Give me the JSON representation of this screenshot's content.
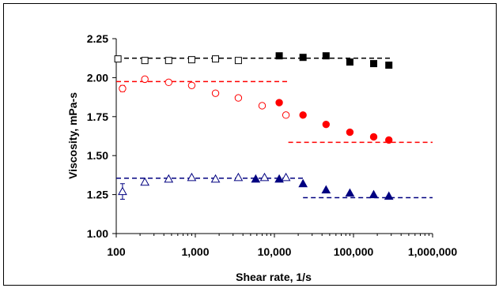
{
  "chart_data": {
    "type": "scatter",
    "title": "",
    "xlabel": "Shear rate, 1/s",
    "ylabel": "Viscosity, mPa-s",
    "xscale": "log",
    "xlim": [
      100,
      1000000
    ],
    "ylim": [
      1.0,
      2.25
    ],
    "x_tick_labels": [
      "100",
      "1,000",
      "10,000",
      "100,000",
      "1,000,000"
    ],
    "x_tick_values": [
      100,
      1000,
      10000,
      100000,
      1000000
    ],
    "y_tick_labels": [
      "1.00",
      "1.25",
      "1.50",
      "1.75",
      "2.00",
      "2.25"
    ],
    "y_tick_values": [
      1.0,
      1.25,
      1.5,
      1.75,
      2.0,
      2.25
    ],
    "grid": false,
    "legend": "none",
    "series": [
      {
        "marker": "square",
        "filled": false,
        "color": "#000000",
        "x": [
          105,
          230,
          460,
          900,
          1800,
          3500
        ],
        "y": [
          2.12,
          2.11,
          2.11,
          2.115,
          2.12,
          2.11
        ]
      },
      {
        "marker": "square",
        "filled": true,
        "color": "#000000",
        "x": [
          11500,
          23000,
          45000,
          90000,
          180000,
          280000
        ],
        "y": [
          2.14,
          2.13,
          2.14,
          2.1,
          2.09,
          2.08
        ]
      },
      {
        "marker": "circle",
        "filled": false,
        "color": "#ff0000",
        "x": [
          120,
          230,
          460,
          900,
          1800,
          3500,
          7000,
          14000
        ],
        "y": [
          1.93,
          1.99,
          1.97,
          1.95,
          1.9,
          1.87,
          1.82,
          1.76
        ]
      },
      {
        "marker": "circle",
        "filled": true,
        "color": "#ff0000",
        "x": [
          11500,
          23000,
          45000,
          90000,
          180000,
          280000
        ],
        "y": [
          1.84,
          1.76,
          1.7,
          1.65,
          1.62,
          1.6
        ]
      },
      {
        "marker": "triangle",
        "filled": false,
        "color": "#000080",
        "x": [
          120,
          230,
          460,
          900,
          1800,
          3500,
          7500,
          14000
        ],
        "y": [
          1.27,
          1.33,
          1.35,
          1.36,
          1.35,
          1.36,
          1.36,
          1.36
        ]
      },
      {
        "marker": "triangle",
        "filled": true,
        "color": "#000080",
        "x": [
          5800,
          11500,
          23000,
          45000,
          90000,
          180000,
          280000
        ],
        "y": [
          1.35,
          1.35,
          1.32,
          1.28,
          1.26,
          1.25,
          1.24
        ]
      }
    ],
    "error_bars": [
      {
        "x": 120,
        "y": 1.27,
        "low": 1.22,
        "high": 1.32,
        "color": "#000080"
      },
      {
        "x": 120,
        "y": 1.93,
        "low": 1.91,
        "high": 1.95,
        "color": "#ff0000"
      }
    ],
    "reference_lines": [
      {
        "color": "#000000",
        "x": [
          100,
          300000
        ],
        "y": 2.125
      },
      {
        "color": "#ff0000",
        "x": [
          100,
          15000
        ],
        "y": 1.975
      },
      {
        "color": "#ff0000",
        "x": [
          15000,
          1000000
        ],
        "y": 1.585
      },
      {
        "color": "#000080",
        "x": [
          100,
          23000
        ],
        "y": 1.355
      },
      {
        "color": "#000080",
        "x": [
          23000,
          1000000
        ],
        "y": 1.23
      }
    ]
  }
}
